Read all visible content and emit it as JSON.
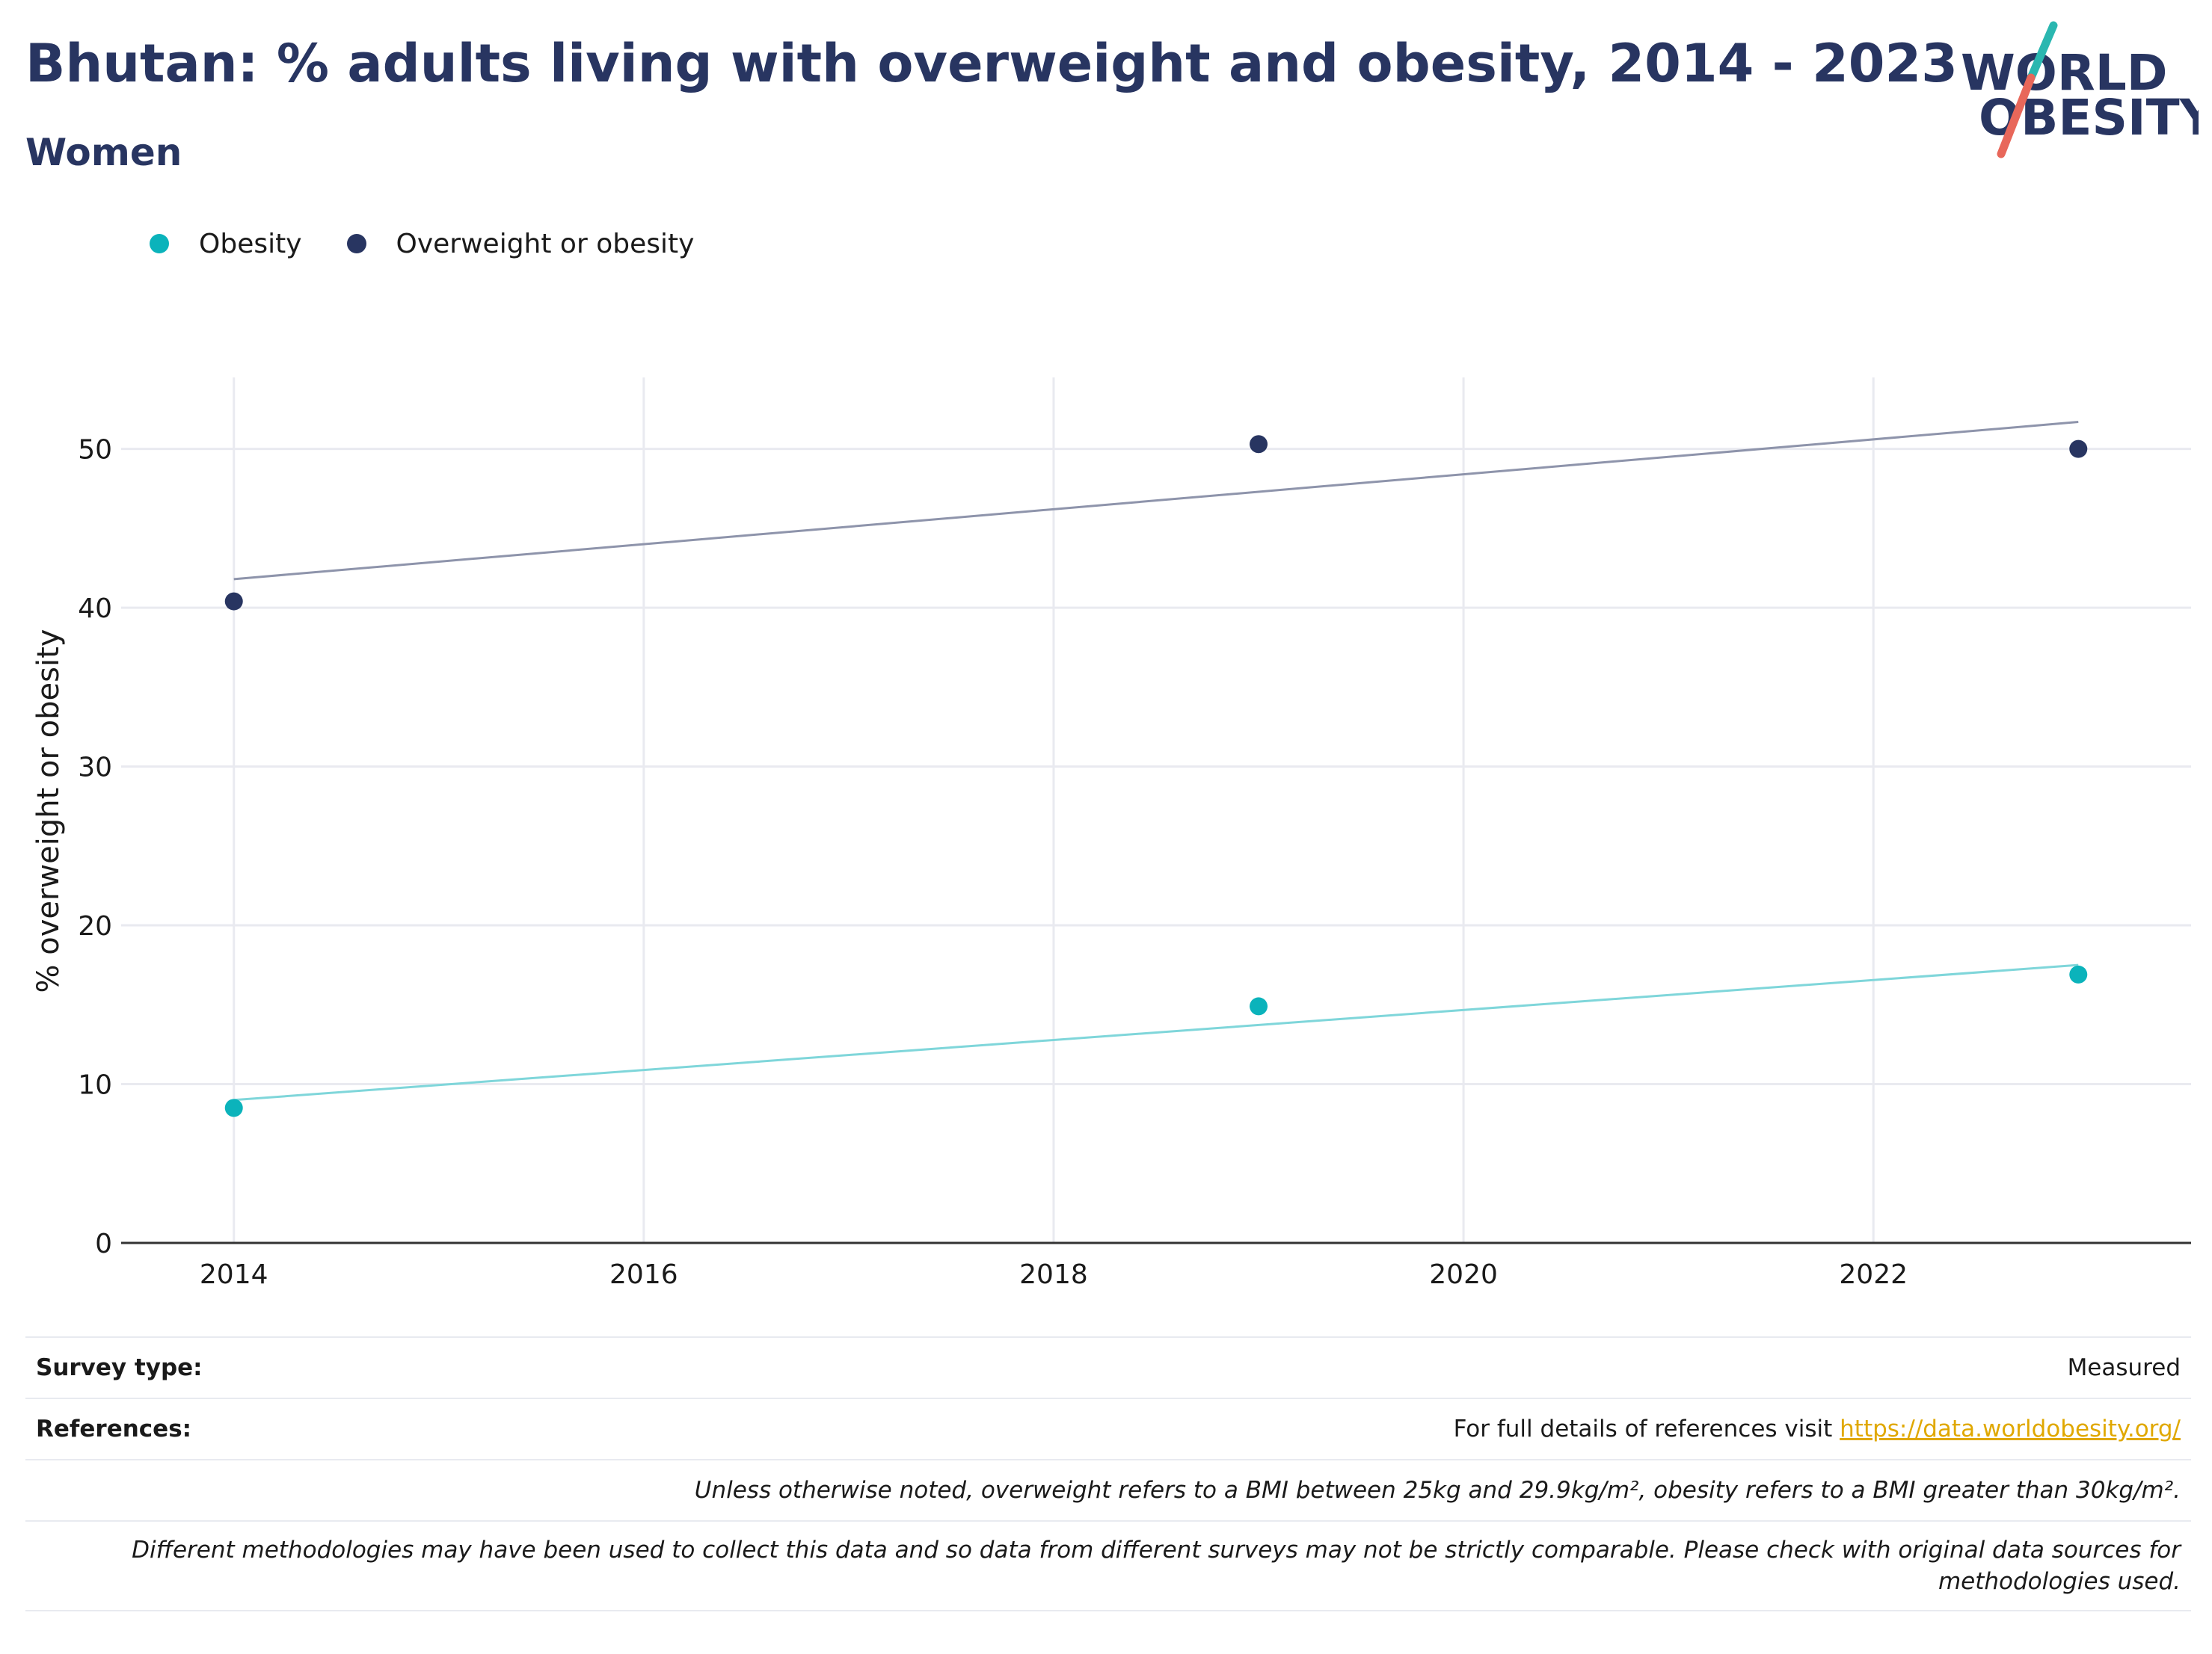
{
  "header": {
    "title": "Bhutan: % adults living with overweight and obesity, 2014 - 2023",
    "subtitle": "Women"
  },
  "logo": {
    "line1": "WORLD",
    "line2": "OBESITY",
    "colors": {
      "text": "#283561",
      "slash_top": "#2ab7b0",
      "slash_bottom": "#e8675a"
    }
  },
  "legend": {
    "items": [
      {
        "label": "Obesity",
        "color": "#0bb3bb"
      },
      {
        "label": "Overweight or obesity",
        "color": "#283561"
      }
    ]
  },
  "chart_data": {
    "type": "scatter",
    "title": "Bhutan: % adults living with overweight and obesity, 2014 - 2023",
    "subtitle": "Women",
    "xlabel": "",
    "ylabel": "% overweight or obesity",
    "xlim": [
      2013.45,
      2023.55
    ],
    "ylim": [
      0,
      54.5
    ],
    "x_ticks": [
      2014,
      2016,
      2018,
      2020,
      2022
    ],
    "y_ticks": [
      0,
      10,
      20,
      30,
      40,
      50
    ],
    "grid": true,
    "legend_position": "top-left",
    "series": [
      {
        "name": "Obesity",
        "color": "#0bb3bb",
        "x": [
          2014,
          2019,
          2023
        ],
        "y": [
          8.5,
          14.9,
          16.9
        ],
        "trendline": {
          "x": [
            2014,
            2023
          ],
          "y": [
            9.0,
            17.5
          ],
          "color": "#7fd6da"
        }
      },
      {
        "name": "Overweight or obesity",
        "color": "#283561",
        "x": [
          2014,
          2019,
          2023
        ],
        "y": [
          40.4,
          50.3,
          50.0
        ],
        "trendline": {
          "x": [
            2014,
            2023
          ],
          "y": [
            41.8,
            51.7
          ],
          "color": "#8e94ab"
        }
      }
    ]
  },
  "footer": {
    "survey_type_label": "Survey type:",
    "survey_type_value": "Measured",
    "references_label": "References:",
    "references_text": "For full details of references visit ",
    "references_link": "https://data.worldobesity.org/",
    "link_color": "#e0a800",
    "note1": "Unless otherwise noted, overweight refers to a BMI between 25kg and 29.9kg/m², obesity refers to a BMI greater than 30kg/m².",
    "note2": "Different methodologies may have been used to collect this data and so data from different surveys may not be strictly comparable. Please check with original data sources for methodologies used."
  }
}
